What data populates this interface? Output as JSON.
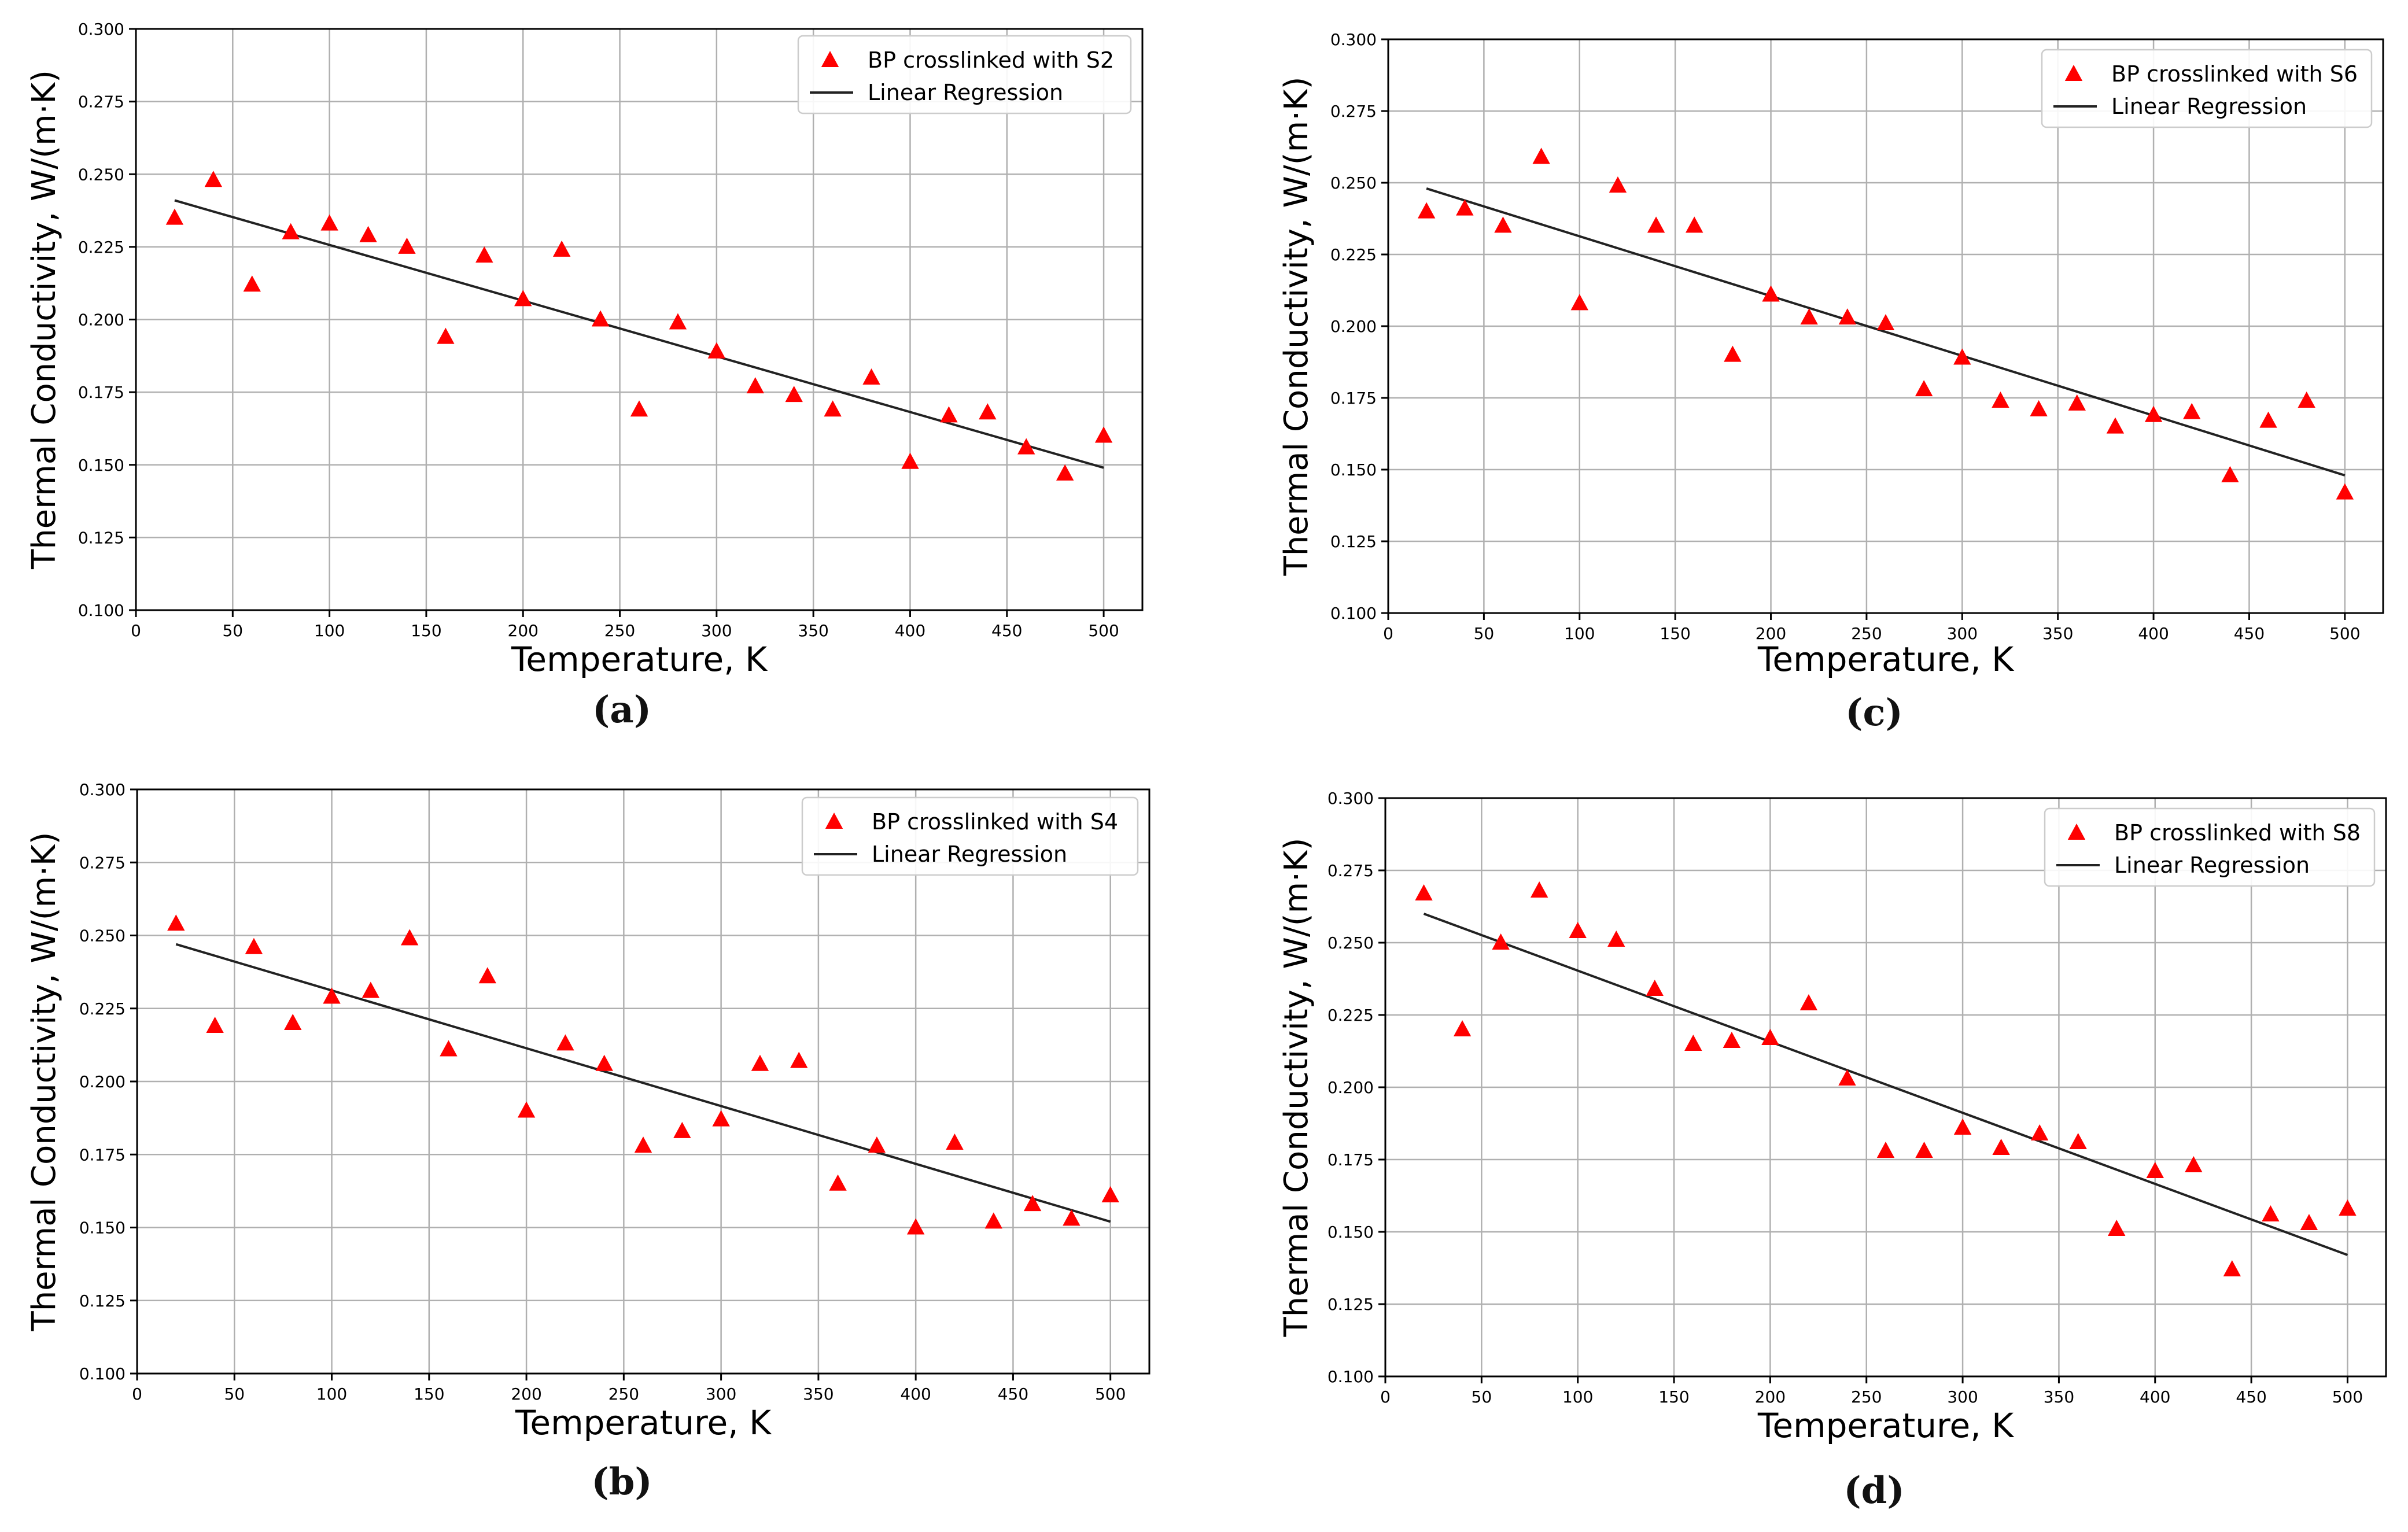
{
  "colors": {
    "marker": "#ff0000",
    "regression": "#222222",
    "grid": "#b0b0b0",
    "axis": "#000000"
  },
  "chart_data": [
    {
      "id": "a",
      "type": "scatter",
      "caption": "(a)",
      "xlabel": "Temperature, K",
      "ylabel": "Thermal Conductivity, W/(m·K)",
      "xlim": [
        0,
        520
      ],
      "ylim": [
        0.1,
        0.3
      ],
      "xticks": [
        0,
        50,
        100,
        150,
        200,
        250,
        300,
        350,
        400,
        450,
        500
      ],
      "yticks": [
        0.1,
        0.125,
        0.15,
        0.175,
        0.2,
        0.225,
        0.25,
        0.275,
        0.3
      ],
      "grid": true,
      "legend_position": "top-right",
      "series": [
        {
          "name": "BP crosslinked with S2",
          "kind": "scatter",
          "marker": "triangle",
          "x": [
            20,
            40,
            60,
            80,
            100,
            120,
            140,
            160,
            180,
            200,
            220,
            240,
            260,
            280,
            300,
            320,
            340,
            360,
            380,
            400,
            420,
            440,
            460,
            480,
            500
          ],
          "y": [
            0.235,
            0.248,
            0.212,
            0.23,
            0.233,
            0.229,
            0.225,
            0.194,
            0.222,
            0.207,
            0.224,
            0.2,
            0.169,
            0.199,
            0.189,
            0.177,
            0.174,
            0.169,
            0.18,
            0.151,
            0.167,
            0.168,
            0.156,
            0.147,
            0.16
          ]
        },
        {
          "name": "Linear Regression",
          "kind": "line",
          "x": [
            20,
            500
          ],
          "y": [
            0.241,
            0.149
          ]
        }
      ]
    },
    {
      "id": "b",
      "type": "scatter",
      "caption": "(b)",
      "xlabel": "Temperature, K",
      "ylabel": "Thermal Conductivity, W/(m·K)",
      "xlim": [
        0,
        520
      ],
      "ylim": [
        0.1,
        0.3
      ],
      "xticks": [
        0,
        50,
        100,
        150,
        200,
        250,
        300,
        350,
        400,
        450,
        500
      ],
      "yticks": [
        0.1,
        0.125,
        0.15,
        0.175,
        0.2,
        0.225,
        0.25,
        0.275,
        0.3
      ],
      "grid": true,
      "legend_position": "top-right",
      "series": [
        {
          "name": "BP crosslinked with S4",
          "kind": "scatter",
          "marker": "triangle",
          "x": [
            20,
            40,
            60,
            80,
            100,
            120,
            140,
            160,
            180,
            200,
            220,
            240,
            260,
            280,
            300,
            320,
            340,
            360,
            380,
            400,
            420,
            440,
            460,
            480,
            500
          ],
          "y": [
            0.254,
            0.219,
            0.246,
            0.22,
            0.229,
            0.231,
            0.249,
            0.211,
            0.236,
            0.19,
            0.213,
            0.206,
            0.178,
            0.183,
            0.187,
            0.206,
            0.207,
            0.165,
            0.178,
            0.15,
            0.179,
            0.152,
            0.158,
            0.153,
            0.161
          ]
        },
        {
          "name": "Linear Regression",
          "kind": "line",
          "x": [
            20,
            500
          ],
          "y": [
            0.247,
            0.152
          ]
        }
      ]
    },
    {
      "id": "c",
      "type": "scatter",
      "caption": "(c)",
      "xlabel": "Temperature, K",
      "ylabel": "Thermal Conductivity, W/(m·K)",
      "xlim": [
        0,
        520
      ],
      "ylim": [
        0.1,
        0.3
      ],
      "xticks": [
        0,
        50,
        100,
        150,
        200,
        250,
        300,
        350,
        400,
        450,
        500
      ],
      "yticks": [
        0.1,
        0.125,
        0.15,
        0.175,
        0.2,
        0.225,
        0.25,
        0.275,
        0.3
      ],
      "grid": true,
      "legend_position": "top-right",
      "series": [
        {
          "name": "BP crosslinked with S6",
          "kind": "scatter",
          "marker": "triangle",
          "x": [
            20,
            40,
            60,
            80,
            100,
            120,
            140,
            160,
            180,
            200,
            220,
            240,
            260,
            280,
            300,
            320,
            340,
            360,
            380,
            400,
            420,
            440,
            460,
            480,
            500
          ],
          "y": [
            0.24,
            0.241,
            0.235,
            0.259,
            0.208,
            0.249,
            0.235,
            0.235,
            0.19,
            0.211,
            0.203,
            0.203,
            0.201,
            0.178,
            0.189,
            0.174,
            0.171,
            0.173,
            0.165,
            0.169,
            0.17,
            0.148,
            0.167,
            0.174,
            0.142
          ]
        },
        {
          "name": "Linear Regression",
          "kind": "line",
          "x": [
            20,
            500
          ],
          "y": [
            0.248,
            0.148
          ]
        }
      ]
    },
    {
      "id": "d",
      "type": "scatter",
      "caption": "(d)",
      "xlabel": "Temperature, K",
      "ylabel": "Thermal Conductivity, W/(m·K)",
      "xlim": [
        0,
        520
      ],
      "ylim": [
        0.1,
        0.3
      ],
      "xticks": [
        0,
        50,
        100,
        150,
        200,
        250,
        300,
        350,
        400,
        450,
        500
      ],
      "yticks": [
        0.1,
        0.125,
        0.15,
        0.175,
        0.2,
        0.225,
        0.25,
        0.275,
        0.3
      ],
      "grid": true,
      "legend_position": "top-right",
      "series": [
        {
          "name": "BP crosslinked with S8",
          "kind": "scatter",
          "marker": "triangle",
          "x": [
            20,
            40,
            60,
            80,
            100,
            120,
            140,
            160,
            180,
            200,
            220,
            240,
            260,
            280,
            300,
            320,
            340,
            360,
            380,
            400,
            420,
            440,
            460,
            480,
            500
          ],
          "y": [
            0.267,
            0.22,
            0.25,
            0.268,
            0.254,
            0.251,
            0.234,
            0.215,
            0.216,
            0.217,
            0.229,
            0.203,
            0.178,
            0.178,
            0.186,
            0.179,
            0.184,
            0.181,
            0.151,
            0.171,
            0.173,
            0.137,
            0.156,
            0.153,
            0.158
          ]
        },
        {
          "name": "Linear Regression",
          "kind": "line",
          "x": [
            20,
            500
          ],
          "y": [
            0.26,
            0.142
          ]
        }
      ]
    }
  ]
}
